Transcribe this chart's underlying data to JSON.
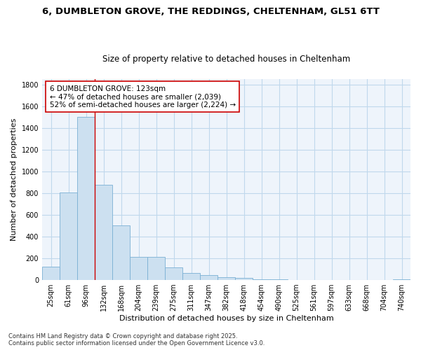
{
  "title_line1": "6, DUMBLETON GROVE, THE REDDINGS, CHELTENHAM, GL51 6TT",
  "title_line2": "Size of property relative to detached houses in Cheltenham",
  "xlabel": "Distribution of detached houses by size in Cheltenham",
  "ylabel": "Number of detached properties",
  "categories": [
    "25sqm",
    "61sqm",
    "96sqm",
    "132sqm",
    "168sqm",
    "204sqm",
    "239sqm",
    "275sqm",
    "311sqm",
    "347sqm",
    "382sqm",
    "418sqm",
    "454sqm",
    "490sqm",
    "525sqm",
    "561sqm",
    "597sqm",
    "633sqm",
    "668sqm",
    "704sqm",
    "740sqm"
  ],
  "values": [
    125,
    805,
    1500,
    880,
    500,
    210,
    210,
    115,
    65,
    45,
    28,
    22,
    5,
    5,
    3,
    2,
    1,
    1,
    1,
    1,
    5
  ],
  "bar_color": "#cce0f0",
  "bar_edge_color": "#7ab0d4",
  "grid_color": "#c0d8ec",
  "background_color": "#ffffff",
  "plot_bg_color": "#eef4fb",
  "vline_color": "#cc0000",
  "vline_x_index": 2,
  "annotation_text": "6 DUMBLETON GROVE: 123sqm\n← 47% of detached houses are smaller (2,039)\n52% of semi-detached houses are larger (2,224) →",
  "annotation_box_color": "#ffffff",
  "annotation_box_edge_color": "#cc0000",
  "ylim": [
    0,
    1850
  ],
  "yticks": [
    0,
    200,
    400,
    600,
    800,
    1000,
    1200,
    1400,
    1600,
    1800
  ],
  "footer": "Contains HM Land Registry data © Crown copyright and database right 2025.\nContains public sector information licensed under the Open Government Licence v3.0.",
  "title_fontsize": 9.5,
  "subtitle_fontsize": 8.5,
  "axis_label_fontsize": 8,
  "tick_fontsize": 7,
  "annotation_fontsize": 7.5,
  "footer_fontsize": 6
}
